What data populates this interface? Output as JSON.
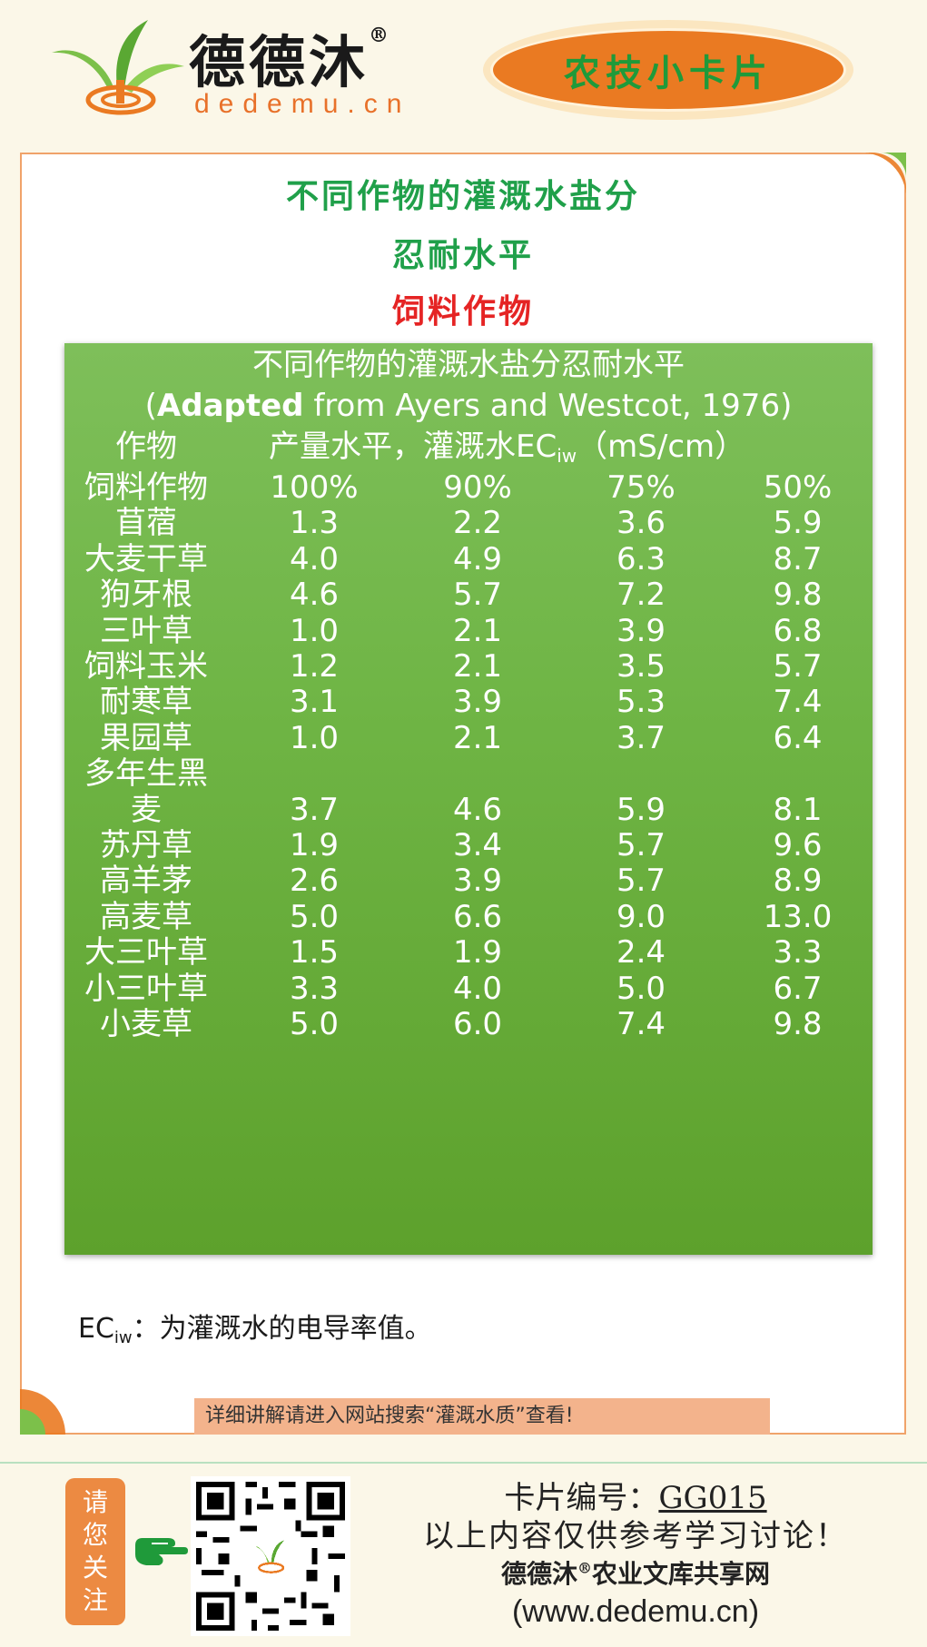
{
  "header": {
    "brand_name": "德德沐",
    "brand_mark": "®",
    "brand_url": "dedemu.cn",
    "badge_label": "农技小卡片"
  },
  "titles": {
    "line1": "不同作物的灌溉水盐分",
    "line2": "忍耐水平",
    "line3": "饲料作物"
  },
  "table": {
    "caption1": "不同作物的灌溉水盐分忍耐水平",
    "caption2_bold": "Adapted",
    "caption2_rest": " from Ayers and Westcot, 1976)",
    "caption2_open": "(",
    "col_crop": "作物",
    "col_yield_prefix": "产量水平，灌溉水EC",
    "col_yield_sub": "iw",
    "col_yield_unit": "（mS/cm）",
    "header_row": [
      "饲料作物",
      "100%",
      "90%",
      "75%",
      "50%"
    ],
    "rows": [
      [
        "苜蓿",
        "1.3",
        "2.2",
        "3.6",
        "5.9"
      ],
      [
        "大麦干草",
        "4.0",
        "4.9",
        "6.3",
        "8.7"
      ],
      [
        "狗牙根",
        "4.6",
        "5.7",
        "7.2",
        "9.8"
      ],
      [
        "三叶草",
        "1.0",
        "2.1",
        "3.9",
        "6.8"
      ],
      [
        "饲料玉米",
        "1.2",
        "2.1",
        "3.5",
        "5.7"
      ],
      [
        "耐寒草",
        "3.1",
        "3.9",
        "5.3",
        "7.4"
      ],
      [
        "果园草",
        "1.0",
        "2.1",
        "3.7",
        "6.4"
      ],
      [
        "多年生黑",
        "",
        "",
        "",
        ""
      ],
      [
        "麦",
        "3.7",
        "4.6",
        "5.9",
        "8.1"
      ],
      [
        "苏丹草",
        "1.9",
        "3.4",
        "5.7",
        "9.6"
      ],
      [
        "高羊茅",
        "2.6",
        "3.9",
        "5.7",
        "8.9"
      ],
      [
        "高麦草",
        "5.0",
        "6.6",
        "9.0",
        "13.0"
      ],
      [
        "大三叶草",
        "1.5",
        "1.9",
        "2.4",
        "3.3"
      ],
      [
        "小三叶草",
        "3.3",
        "4.0",
        "5.0",
        "6.7"
      ],
      [
        "小麦草",
        "5.0",
        "6.0",
        "7.4",
        "9.8"
      ]
    ]
  },
  "note": {
    "prefix": "EC",
    "sub": "iw",
    "text": "：为灌溉水的电导率值。"
  },
  "tip": "详细讲解请进入网站搜索“灌溉水质”查看!",
  "footer": {
    "follow_label": [
      "请",
      "您",
      "关",
      "注"
    ],
    "card_no_label": "卡片编号：",
    "card_no": "GG015",
    "disclaimer": "以上内容仅供参考学习讨论！",
    "site_name_a": "德德沐",
    "site_name_mark": "®",
    "site_name_b": "农业文库共享网",
    "site_url": "(www.dedemu.cn)"
  },
  "colors": {
    "accent_orange": "#ea7a22",
    "accent_green": "#20a04a",
    "title_red": "#e52424",
    "table_green": "#6fb545"
  },
  "icons": [
    "sprout-logo-icon",
    "pointing-hand-icon",
    "qr-code-icon"
  ]
}
